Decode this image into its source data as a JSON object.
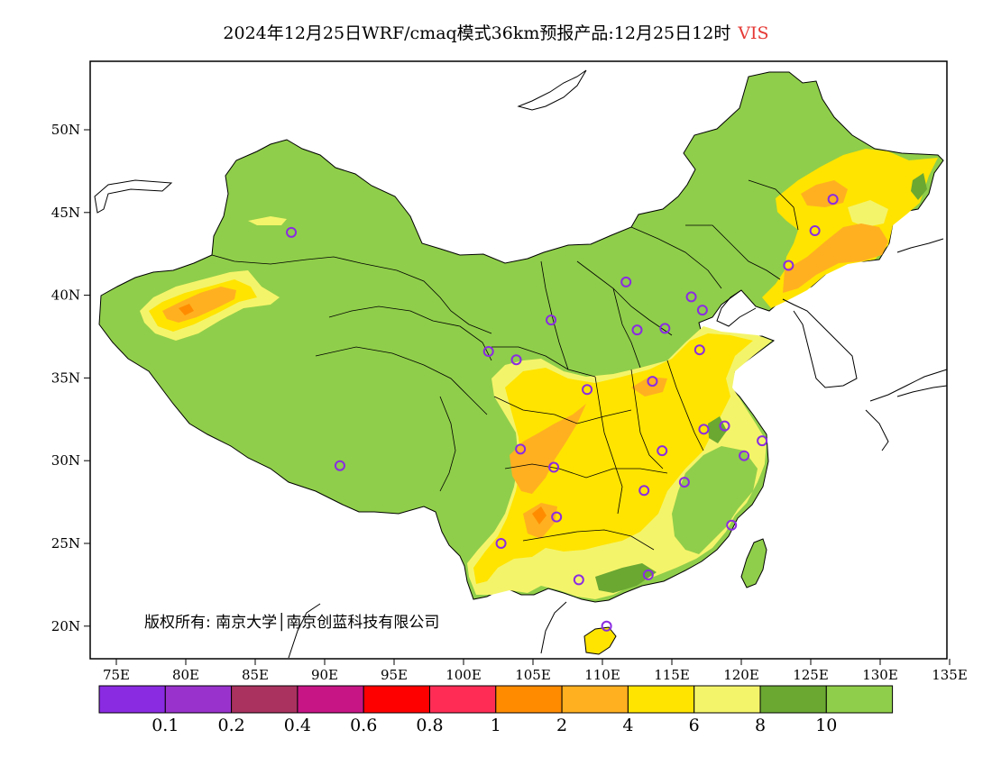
{
  "title": {
    "text": "2024年12月25日WRF/cmaq模式36km预报产品:12月25日12时",
    "variable": "VIS"
  },
  "copyright": "版权所有: 南京大学│南京创蓝科技有限公司",
  "axes": {
    "x_ticks": [
      "75E",
      "80E",
      "85E",
      "90E",
      "95E",
      "100E",
      "105E",
      "110E",
      "115E",
      "120E",
      "125E",
      "130E",
      "135E"
    ],
    "y_ticks": [
      "50N",
      "45N",
      "40N",
      "35N",
      "30N",
      "25N",
      "20N"
    ]
  },
  "colorbar": {
    "colors": [
      "#8a2be2",
      "#9932cc",
      "#a9325e",
      "#c71585",
      "#ff0000",
      "#ff2d55",
      "#ff8c00",
      "#ffb020",
      "#ffe400",
      "#f4f46a",
      "#6aa832",
      "#8fce4a"
    ],
    "labels": [
      "0.1",
      "0.2",
      "0.4",
      "0.6",
      "0.8",
      "1",
      "2",
      "4",
      "6",
      "8",
      "10"
    ]
  },
  "map_colors": {
    "land_high": "#8fce4a",
    "band_8_10": "#6aa832",
    "band_6_8": "#f4f46a",
    "band_4_6": "#ffe400",
    "band_2_4": "#ffb020",
    "band_1_2": "#ff8c00",
    "station": "#8a2be2"
  },
  "stations": [
    {
      "lon": 87.6,
      "lat": 43.8
    },
    {
      "lon": 91.1,
      "lat": 29.7
    },
    {
      "lon": 101.8,
      "lat": 36.6
    },
    {
      "lon": 103.8,
      "lat": 36.1
    },
    {
      "lon": 106.3,
      "lat": 38.5
    },
    {
      "lon": 111.7,
      "lat": 40.8
    },
    {
      "lon": 112.5,
      "lat": 37.9
    },
    {
      "lon": 114.5,
      "lat": 38.0
    },
    {
      "lon": 116.4,
      "lat": 39.9
    },
    {
      "lon": 117.2,
      "lat": 39.1
    },
    {
      "lon": 123.4,
      "lat": 41.8
    },
    {
      "lon": 125.3,
      "lat": 43.9
    },
    {
      "lon": 126.6,
      "lat": 45.8
    },
    {
      "lon": 117.0,
      "lat": 36.7
    },
    {
      "lon": 113.6,
      "lat": 34.8
    },
    {
      "lon": 108.9,
      "lat": 34.3
    },
    {
      "lon": 104.1,
      "lat": 30.7
    },
    {
      "lon": 106.5,
      "lat": 29.6
    },
    {
      "lon": 114.3,
      "lat": 30.6
    },
    {
      "lon": 117.3,
      "lat": 31.9
    },
    {
      "lon": 118.8,
      "lat": 32.1
    },
    {
      "lon": 121.5,
      "lat": 31.2
    },
    {
      "lon": 120.2,
      "lat": 30.3
    },
    {
      "lon": 115.9,
      "lat": 28.7
    },
    {
      "lon": 113.0,
      "lat": 28.2
    },
    {
      "lon": 106.7,
      "lat": 26.6
    },
    {
      "lon": 102.7,
      "lat": 25.0
    },
    {
      "lon": 119.3,
      "lat": 26.1
    },
    {
      "lon": 113.3,
      "lat": 23.1
    },
    {
      "lon": 108.3,
      "lat": 22.8
    },
    {
      "lon": 110.3,
      "lat": 20.0
    }
  ]
}
